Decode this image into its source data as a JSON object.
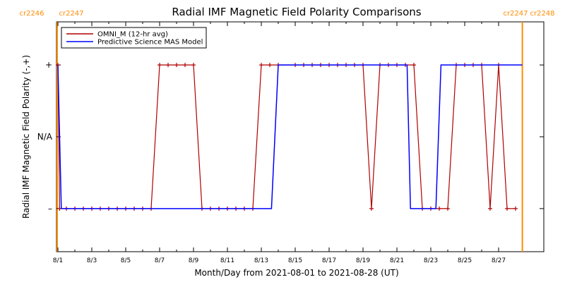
{
  "chart_data": {
    "type": "line",
    "title": "Radial IMF Magnetic Field Polarity Comparisons",
    "xlabel": "Month/Day from 2021-08-01 to 2021-08-28 (UT)",
    "ylabel": "Radial IMF Magnetic Field Polarity (-,+)",
    "xlim": [
      0,
      27.5
    ],
    "ylim": [
      -1.6,
      1.6
    ],
    "x_ticks": [
      {
        "x": 0,
        "label": "8/1"
      },
      {
        "x": 2,
        "label": "8/3"
      },
      {
        "x": 4,
        "label": "8/5"
      },
      {
        "x": 6,
        "label": "8/7"
      },
      {
        "x": 8,
        "label": "8/9"
      },
      {
        "x": 10,
        "label": "8/11"
      },
      {
        "x": 12,
        "label": "8/13"
      },
      {
        "x": 14,
        "label": "8/15"
      },
      {
        "x": 16,
        "label": "8/17"
      },
      {
        "x": 18,
        "label": "8/19"
      },
      {
        "x": 20,
        "label": "8/21"
      },
      {
        "x": 22,
        "label": "8/23"
      },
      {
        "x": 24,
        "label": "8/25"
      },
      {
        "x": 26,
        "label": "8/27"
      }
    ],
    "y_ticks": [
      {
        "y": 1,
        "label": "+"
      },
      {
        "y": 0,
        "label": "N/A"
      },
      {
        "y": -1,
        "label": "–"
      }
    ],
    "carrington_markers": [
      {
        "x": 0,
        "left": "cr2246",
        "right": "cr2247",
        "position": "top-left",
        "color": "#ff8c00"
      },
      {
        "x": 27.4,
        "left": "cr2247",
        "right": "cr2248",
        "position": "top-right",
        "color": "#ff8c00"
      }
    ],
    "legend": {
      "placement": "top-left",
      "box": true
    },
    "series": [
      {
        "name": "OMNI_M (12-hr avg)",
        "color": "#b00000",
        "marker": "+",
        "points": [
          [
            0,
            1
          ],
          [
            0.1,
            -1
          ],
          [
            0.5,
            -1
          ],
          [
            1,
            -1
          ],
          [
            1.5,
            -1
          ],
          [
            2,
            -1
          ],
          [
            2.5,
            -1
          ],
          [
            3,
            -1
          ],
          [
            3.5,
            -1
          ],
          [
            4,
            -1
          ],
          [
            4.5,
            -1
          ],
          [
            5,
            -1
          ],
          [
            5.5,
            -1
          ],
          [
            6,
            1
          ],
          [
            6.5,
            1
          ],
          [
            7,
            1
          ],
          [
            7.5,
            1
          ],
          [
            8,
            1
          ],
          [
            8.5,
            -1
          ],
          [
            9,
            -1
          ],
          [
            9.5,
            -1
          ],
          [
            10,
            -1
          ],
          [
            10.5,
            -1
          ],
          [
            11,
            -1
          ],
          [
            11.5,
            -1
          ],
          [
            12,
            1
          ],
          [
            12.5,
            1
          ],
          [
            13,
            1
          ],
          [
            14,
            1
          ],
          [
            14.5,
            1
          ],
          [
            15,
            1
          ],
          [
            15.5,
            1
          ],
          [
            16,
            1
          ],
          [
            16.5,
            1
          ],
          [
            17,
            1
          ],
          [
            17.5,
            1
          ],
          [
            18,
            1
          ],
          [
            18.5,
            -1
          ],
          [
            19,
            1
          ],
          [
            19.5,
            1
          ],
          [
            20,
            1
          ],
          [
            20.5,
            1
          ],
          [
            21,
            1
          ],
          [
            21.5,
            -1
          ],
          [
            22,
            -1
          ],
          [
            22.5,
            -1
          ],
          [
            23,
            -1
          ],
          [
            23.5,
            1
          ],
          [
            24,
            1
          ],
          [
            24.5,
            1
          ],
          [
            25,
            1
          ],
          [
            25.5,
            -1
          ],
          [
            26,
            1
          ],
          [
            26.5,
            -1
          ],
          [
            27,
            -1
          ]
        ]
      },
      {
        "name": "Predictive Science MAS Model",
        "color": "#0000ff",
        "marker": "",
        "points": [
          [
            0,
            1
          ],
          [
            0.2,
            -1
          ],
          [
            12.6,
            -1
          ],
          [
            13,
            1
          ],
          [
            20.6,
            1
          ],
          [
            20.8,
            -1
          ],
          [
            22.3,
            -1
          ],
          [
            22.6,
            1
          ],
          [
            27.4,
            1
          ]
        ]
      }
    ]
  }
}
